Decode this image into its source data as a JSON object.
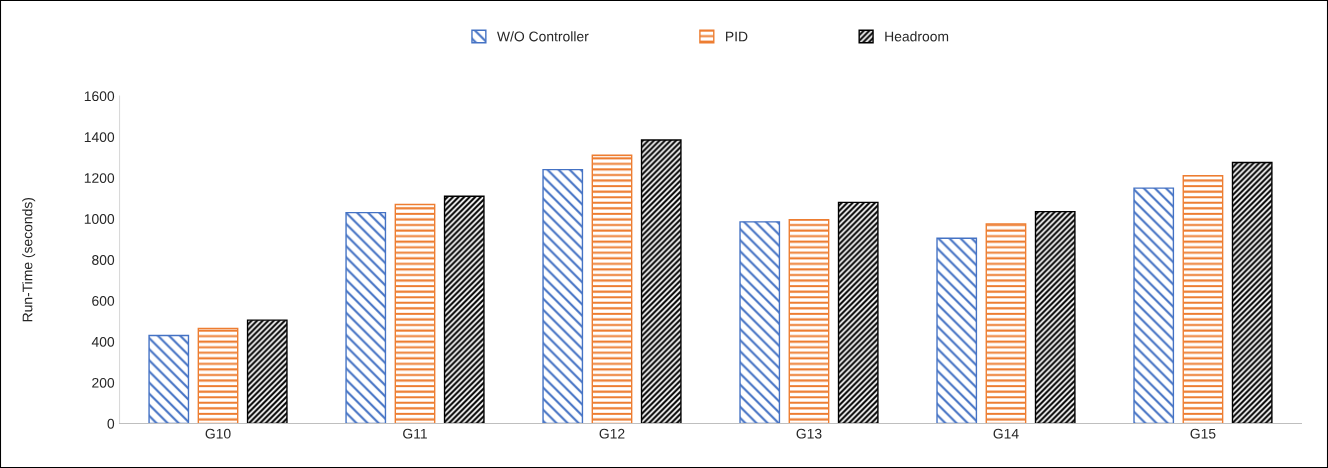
{
  "chart_data": {
    "type": "bar",
    "ylabel": "Run-Time (seconds)",
    "categories": [
      "G10",
      "G11",
      "G12",
      "G13",
      "G14",
      "G15"
    ],
    "series": [
      {
        "name": "W/O Controller",
        "color": "#4472c4",
        "values": [
          430,
          1030,
          1240,
          985,
          905,
          1150
        ]
      },
      {
        "name": "PID",
        "color": "#ed7d31",
        "values": [
          465,
          1070,
          1310,
          995,
          975,
          1210
        ]
      },
      {
        "name": "Headroom",
        "color": "#000000",
        "values": [
          505,
          1110,
          1385,
          1080,
          1035,
          1275
        ]
      }
    ],
    "ylim": [
      0,
      1600
    ],
    "yticks": [
      0,
      200,
      400,
      600,
      800,
      1000,
      1200,
      1400,
      1600
    ],
    "grid": false,
    "legend": "top"
  }
}
